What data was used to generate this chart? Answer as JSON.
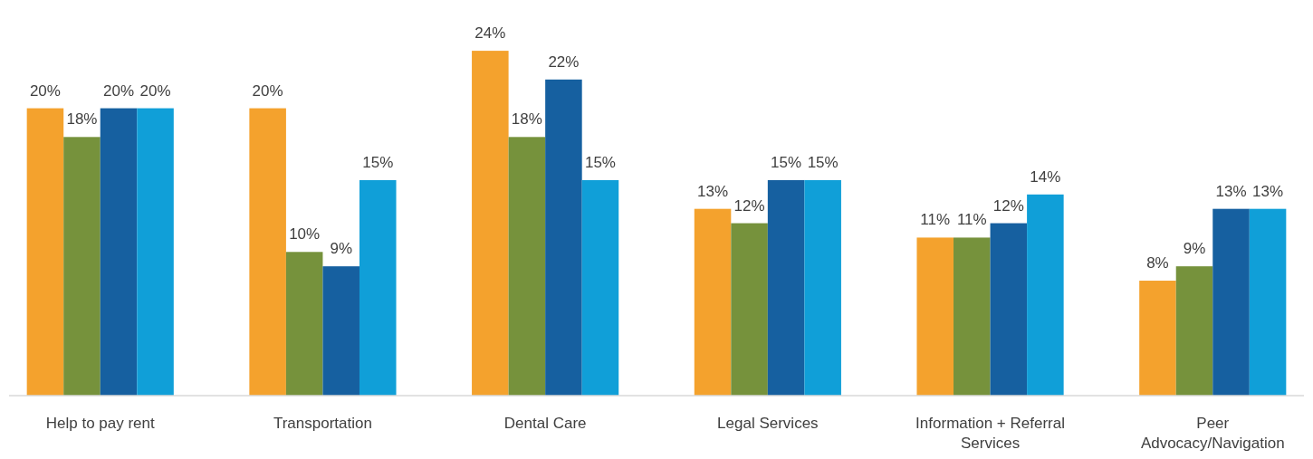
{
  "chart_data": {
    "type": "bar",
    "categories": [
      "Help to pay rent",
      "Transportation",
      "Dental Care",
      "Legal Services",
      "Information + Referral Services",
      "Peer Advocacy/Navigation"
    ],
    "series": [
      {
        "color": "#f4a22d",
        "values": [
          20,
          20,
          24,
          13,
          11,
          8
        ],
        "value_labels": [
          "20%",
          "20%",
          "24%",
          "13%",
          "11%",
          "8%"
        ]
      },
      {
        "color": "#76923c",
        "values": [
          18,
          10,
          18,
          12,
          11,
          9
        ],
        "value_labels": [
          "18%",
          "10%",
          "18%",
          "12%",
          "11%",
          "9%"
        ]
      },
      {
        "color": "#1660a0",
        "values": [
          20,
          9,
          22,
          15,
          12,
          13
        ],
        "value_labels": [
          "20%",
          "9%",
          "22%",
          "15%",
          "12%",
          "13%"
        ]
      },
      {
        "color": "#109fd8",
        "values": [
          20,
          15,
          15,
          15,
          14,
          13
        ],
        "value_labels": [
          "20%",
          "15%",
          "15%",
          "15%",
          "14%",
          "13%"
        ]
      }
    ]
  }
}
